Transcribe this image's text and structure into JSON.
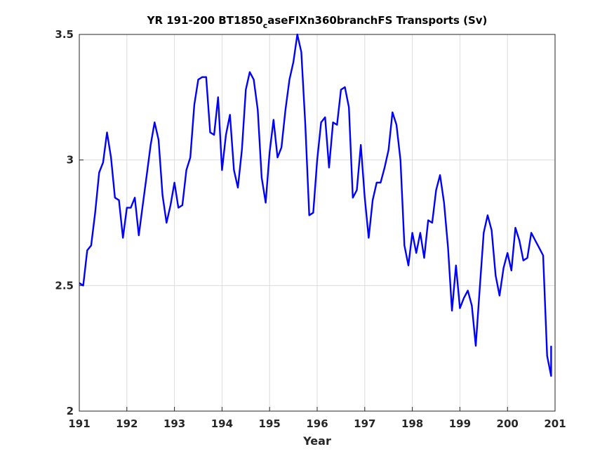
{
  "chart_data": {
    "type": "line",
    "title_main": "YR 191-200 BT1850",
    "title_sub": "c",
    "title_rest": "aseFIXn360branchFS Transports (Sv)",
    "xlabel": "Year",
    "ylabel": "",
    "xlim": [
      191,
      201
    ],
    "ylim": [
      2,
      3.5
    ],
    "xticks": [
      "191",
      "192",
      "193",
      "194",
      "195",
      "196",
      "197",
      "198",
      "199",
      "200",
      "201"
    ],
    "yticks": [
      "2",
      "2.5",
      "3",
      "3.5"
    ],
    "grid": true,
    "line_color": "#0000ff",
    "series": [
      {
        "x": [
          191.0,
          191.083,
          191.167,
          191.25,
          191.333,
          191.417,
          191.5,
          191.583,
          191.667,
          191.75,
          191.833,
          191.917,
          192.0,
          192.083,
          192.167,
          192.25,
          192.333,
          192.417,
          192.5,
          192.583,
          192.667,
          192.75,
          192.833,
          192.917,
          193.0,
          193.083,
          193.167,
          193.25,
          193.333,
          193.417,
          193.5,
          193.583,
          193.667,
          193.75,
          193.833,
          193.917,
          194.0,
          194.083,
          194.167,
          194.25,
          194.333,
          194.417,
          194.5,
          194.583,
          194.667,
          194.75,
          194.833,
          194.917,
          195.0,
          195.083,
          195.167,
          195.25,
          195.333,
          195.417,
          195.5,
          195.583,
          195.667,
          195.75,
          195.833,
          195.917,
          196.0,
          196.083,
          196.167,
          196.25,
          196.333,
          196.417,
          196.5,
          196.583,
          196.667,
          196.75,
          196.833,
          196.917,
          197.0,
          197.083,
          197.167,
          197.25,
          197.333,
          197.417,
          197.5,
          197.583,
          197.667,
          197.75,
          197.833,
          197.917,
          198.0,
          198.083,
          198.167,
          198.25,
          198.333,
          198.417,
          198.5,
          198.583,
          198.667,
          198.75,
          198.833,
          198.917,
          199.0,
          199.083,
          199.167,
          199.25,
          199.333,
          199.417,
          199.5,
          199.583,
          199.667,
          199.75,
          199.833,
          199.917,
          200.0,
          200.083,
          200.167,
          200.25,
          200.333,
          200.417,
          200.5,
          200.583,
          200.667,
          200.75,
          200.833,
          200.917
        ],
        "y": [
          2.51,
          2.5,
          2.64,
          2.66,
          2.79,
          2.95,
          2.99,
          3.11,
          3.01,
          2.85,
          2.84,
          2.69,
          2.81,
          2.81,
          2.85,
          2.7,
          2.82,
          2.94,
          3.06,
          3.15,
          3.08,
          2.86,
          2.75,
          2.82,
          2.91,
          2.81,
          2.82,
          2.96,
          3.01,
          3.22,
          3.32,
          3.33,
          3.33,
          3.11,
          3.1,
          3.25,
          2.96,
          3.1,
          3.18,
          2.96,
          2.89,
          3.04,
          3.28,
          3.35,
          3.32,
          3.2,
          2.93,
          2.83,
          3.03,
          3.16,
          3.01,
          3.05,
          3.2,
          3.32,
          3.39,
          3.5,
          3.43,
          3.14,
          2.78,
          2.79,
          3.0,
          3.15,
          3.17,
          2.97,
          3.15,
          3.14,
          3.28,
          3.29,
          3.21,
          2.85,
          2.88,
          3.06,
          2.85,
          2.69,
          2.84,
          2.91,
          2.91,
          2.97,
          3.04,
          3.19,
          3.14,
          3.0,
          2.66,
          2.58,
          2.71,
          2.63,
          2.71,
          2.61,
          2.76,
          2.75,
          2.88,
          2.94,
          2.83,
          2.65,
          2.4,
          2.58,
          2.41,
          2.45,
          2.48,
          2.42,
          2.26,
          2.49,
          2.71,
          2.78,
          2.72,
          2.54,
          2.46,
          2.57,
          2.63,
          2.56,
          2.73,
          2.68,
          2.6,
          2.61,
          2.71,
          2.68,
          2.65,
          2.62,
          2.22,
          2.14
        ]
      }
    ],
    "extra_points": {
      "x": [
        200.917
      ],
      "y": [
        2.26
      ]
    }
  }
}
